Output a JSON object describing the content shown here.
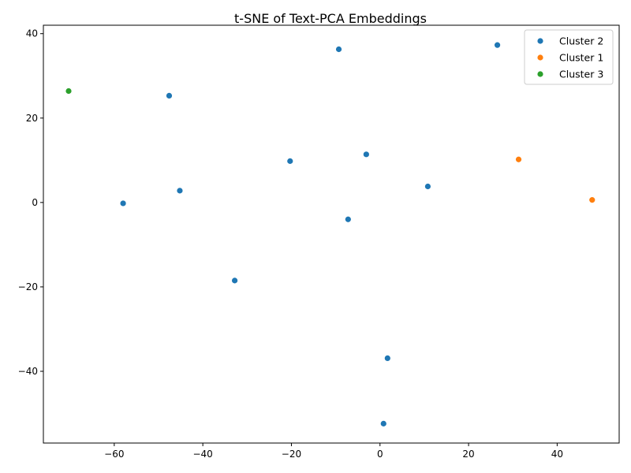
{
  "chart_data": {
    "type": "scatter",
    "title": "t-SNE of Text-PCA Embeddings",
    "xlabel": "",
    "ylabel": "",
    "xlim": [
      -76,
      54
    ],
    "ylim": [
      -57,
      42
    ],
    "xticks": [
      -60,
      -40,
      -20,
      0,
      20,
      40
    ],
    "yticks": [
      -40,
      -20,
      0,
      20,
      40
    ],
    "grid": false,
    "legend_position": "top-right",
    "series": [
      {
        "name": "Cluster 2",
        "color": "#1f77b4",
        "points": [
          {
            "x": -9.3,
            "y": 36.3
          },
          {
            "x": 26.5,
            "y": 37.3
          },
          {
            "x": -47.6,
            "y": 25.3
          },
          {
            "x": -20.3,
            "y": 9.8
          },
          {
            "x": -3.1,
            "y": 11.4
          },
          {
            "x": 10.8,
            "y": 3.8
          },
          {
            "x": -45.2,
            "y": 2.8
          },
          {
            "x": -58.0,
            "y": -0.2
          },
          {
            "x": -7.2,
            "y": -4.0
          },
          {
            "x": -32.8,
            "y": -18.5
          },
          {
            "x": 1.7,
            "y": -36.9
          },
          {
            "x": 0.8,
            "y": -52.4
          }
        ]
      },
      {
        "name": "Cluster 1",
        "color": "#ff7f0e",
        "points": [
          {
            "x": 31.3,
            "y": 10.2
          },
          {
            "x": 47.9,
            "y": 0.6
          }
        ]
      },
      {
        "name": "Cluster 3",
        "color": "#2ca02c",
        "points": [
          {
            "x": -70.3,
            "y": 26.4
          }
        ]
      }
    ]
  }
}
